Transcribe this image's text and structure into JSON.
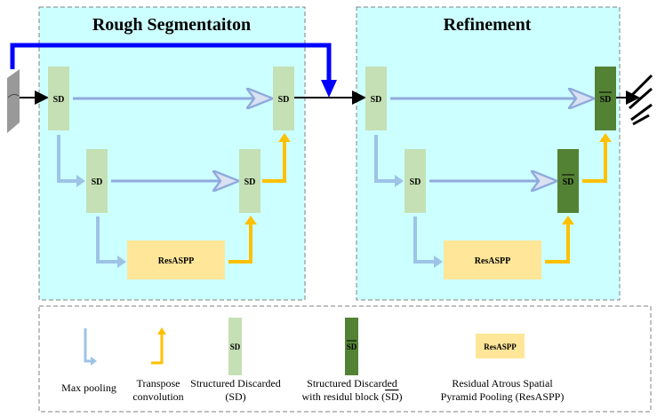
{
  "panels": {
    "rough": {
      "title": "Rough Segmentaiton"
    },
    "refine": {
      "title": "Refinement"
    }
  },
  "blocks": {
    "sd": "SD",
    "sd_bar": "SD",
    "resaspp": "ResASPP"
  },
  "legend": {
    "max_pooling": [
      "Max pooling"
    ],
    "transpose": [
      "Transpose",
      "convolution"
    ],
    "sd": [
      "Structured Discarded",
      "(SD)"
    ],
    "sd_bar": [
      "Structured Discarded",
      "with residul block (",
      "SD",
      ")"
    ],
    "resaspp": [
      "Residual Atrous Spatial",
      "Pyramid Pooling (ResASPP)"
    ]
  },
  "colors": {
    "panel_bg": "#ccffff",
    "sd": "#c5e0b4",
    "sd_bar": "#548235",
    "resaspp": "#ffe699",
    "max_pool_arrow": "#9dc3e6",
    "transpose_arrow": "#ffc000",
    "skip_arrow": "#0000ff"
  }
}
